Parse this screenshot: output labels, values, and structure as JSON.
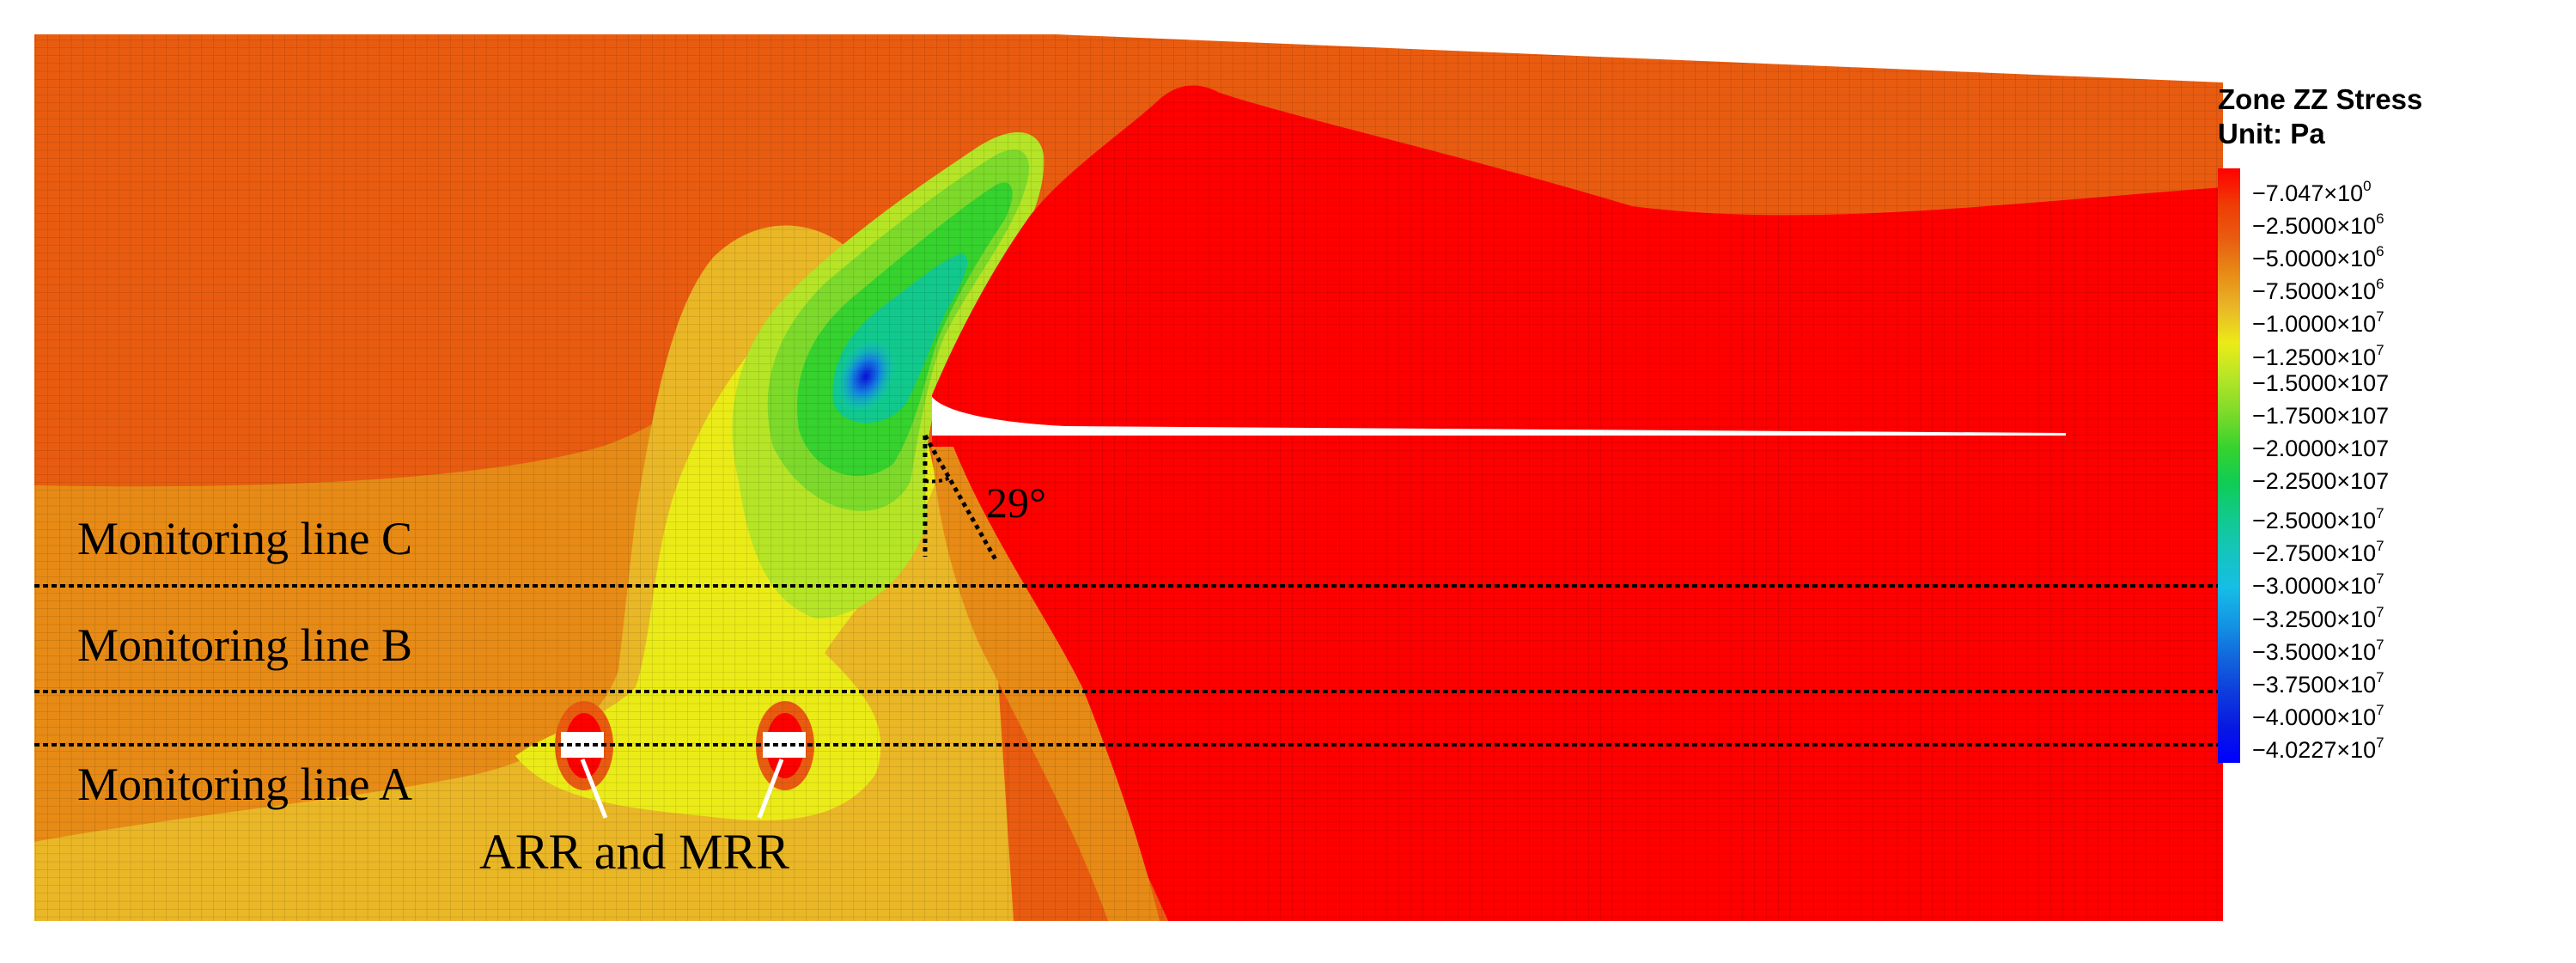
{
  "legend": {
    "title": "Zone ZZ Stress",
    "unit": "Unit: Pa",
    "entries": [
      {
        "mantissa": "−7.047×10",
        "exp": "0",
        "color": "#ff0000"
      },
      {
        "mantissa": "−2.5000×10",
        "exp": "6",
        "color": "#f03a05"
      },
      {
        "mantissa": "−5.0000×10",
        "exp": "6",
        "color": "#e95c10"
      },
      {
        "mantissa": "−7.5000×10",
        "exp": "6",
        "color": "#e78b16"
      },
      {
        "mantissa": "−1.0000×10",
        "exp": "7",
        "color": "#eab727"
      },
      {
        "mantissa": "−1.2500×10",
        "exp": "7",
        "color": "#ebeb18"
      },
      {
        "mantissa": "−1.5000×107",
        "exp": "",
        "color": "#b5e526"
      },
      {
        "mantissa": "−1.7500×107",
        "exp": "",
        "color": "#7dda2a"
      },
      {
        "mantissa": "−2.0000×107",
        "exp": "",
        "color": "#36d22e"
      },
      {
        "mantissa": "−2.2500×107",
        "exp": "",
        "color": "#10cc55"
      },
      {
        "mantissa": "−2.5000×10",
        "exp": "7",
        "color": "#12c98d"
      },
      {
        "mantissa": "−2.7500×10",
        "exp": "7",
        "color": "#14c5be"
      },
      {
        "mantissa": "−3.0000×10",
        "exp": "7",
        "color": "#16bde6"
      },
      {
        "mantissa": "−3.2500×10",
        "exp": "7",
        "color": "#1396e4"
      },
      {
        "mantissa": "−3.5000×10",
        "exp": "7",
        "color": "#1266dc"
      },
      {
        "mantissa": "−3.7500×10",
        "exp": "7",
        "color": "#0e3cdc"
      },
      {
        "mantissa": "−4.0000×10",
        "exp": "7",
        "color": "#0818e2"
      },
      {
        "mantissa": "−4.0227×10",
        "exp": "7",
        "color": "#0000ff"
      }
    ]
  },
  "monitoring_lines": [
    {
      "label": "Monitoring line C"
    },
    {
      "label": "Monitoring line B"
    },
    {
      "label": "Monitoring line A"
    }
  ],
  "angle_label": "29°",
  "roadway_label": "ARR and MRR"
}
